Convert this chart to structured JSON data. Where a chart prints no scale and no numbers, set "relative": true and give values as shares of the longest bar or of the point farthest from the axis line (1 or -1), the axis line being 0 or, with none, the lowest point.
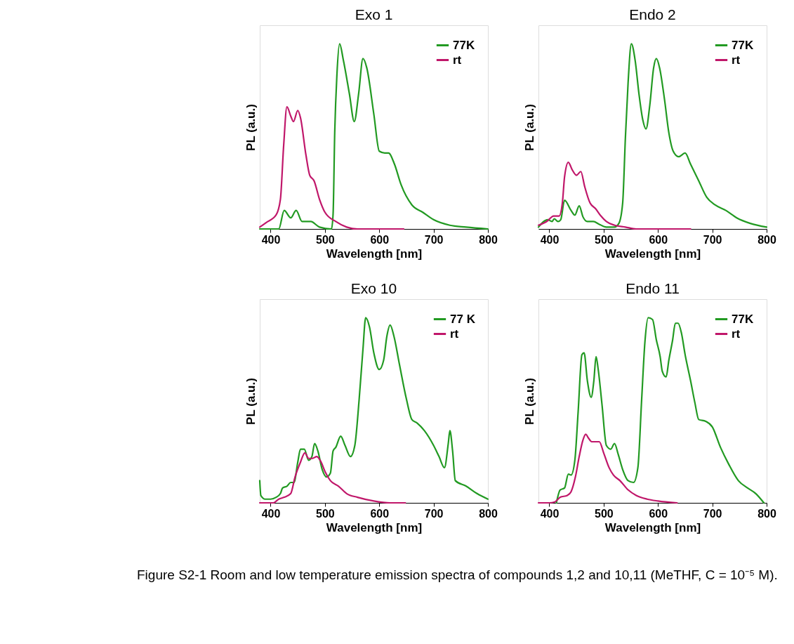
{
  "chart_data": [
    {
      "type": "line",
      "title": "Exo 1",
      "xlabel": "Wavelength  [nm]",
      "ylabel": "PL (a.u.)",
      "relative": true,
      "xlim": [
        380,
        800
      ],
      "xticks": [
        400,
        500,
        600,
        700,
        800
      ],
      "legend": "top right",
      "series": [
        {
          "name": "77K",
          "color": "#229a22",
          "x": [
            380,
            415,
            425,
            437,
            447,
            458,
            474,
            490,
            512,
            515,
            518,
            522,
            527,
            534,
            545,
            554,
            562,
            570,
            577,
            590,
            600,
            610,
            617,
            628,
            640,
            660,
            680,
            700,
            730,
            760,
            800
          ],
          "values": [
            0.0,
            0.0,
            0.1,
            0.06,
            0.1,
            0.04,
            0.04,
            0.01,
            0.0,
            0.08,
            0.52,
            0.83,
            1.0,
            0.91,
            0.73,
            0.58,
            0.73,
            0.92,
            0.87,
            0.62,
            0.42,
            0.41,
            0.41,
            0.35,
            0.24,
            0.13,
            0.09,
            0.05,
            0.02,
            0.01,
            0.0
          ]
        },
        {
          "name": "rt",
          "color": "#c0176a",
          "x": [
            380,
            392,
            410,
            418,
            424,
            430,
            437,
            442,
            450,
            455,
            465,
            472,
            480,
            490,
            500,
            520,
            540,
            560,
            645
          ],
          "values": [
            0.01,
            0.035,
            0.075,
            0.16,
            0.45,
            0.66,
            0.61,
            0.58,
            0.64,
            0.6,
            0.4,
            0.29,
            0.26,
            0.16,
            0.09,
            0.04,
            0.01,
            0.0,
            0.0
          ]
        }
      ]
    },
    {
      "type": "line",
      "title": "Endo 2",
      "xlabel": "Wavelength  [nm]",
      "ylabel": "PL (a.u.)",
      "relative": true,
      "xlim": [
        380,
        800
      ],
      "xticks": [
        400,
        500,
        600,
        700,
        800
      ],
      "legend": "top right",
      "series": [
        {
          "name": "77K",
          "color": "#229a22",
          "x": [
            380,
            397,
            405,
            409,
            416,
            421,
            428,
            440,
            447,
            455,
            462,
            470,
            481,
            492,
            505,
            520,
            528,
            535,
            540,
            545,
            551,
            558,
            565,
            572,
            578,
            585,
            592,
            597,
            603,
            612,
            620,
            628,
            638,
            650,
            660,
            675,
            690,
            705,
            725,
            745,
            770,
            800
          ],
          "values": [
            0.01,
            0.05,
            0.04,
            0.055,
            0.04,
            0.05,
            0.155,
            0.1,
            0.075,
            0.125,
            0.065,
            0.04,
            0.04,
            0.025,
            0.01,
            0.01,
            0.03,
            0.14,
            0.49,
            0.79,
            1.0,
            0.91,
            0.73,
            0.59,
            0.54,
            0.67,
            0.87,
            0.92,
            0.87,
            0.7,
            0.52,
            0.42,
            0.39,
            0.41,
            0.35,
            0.26,
            0.17,
            0.13,
            0.1,
            0.06,
            0.03,
            0.01
          ]
        },
        {
          "name": "rt",
          "color": "#c0176a",
          "x": [
            380,
            395,
            408,
            418,
            424,
            428,
            435,
            442,
            450,
            458,
            465,
            475,
            485,
            495,
            505,
            520,
            540,
            560,
            660
          ],
          "values": [
            0.02,
            0.04,
            0.07,
            0.07,
            0.14,
            0.28,
            0.36,
            0.32,
            0.29,
            0.31,
            0.23,
            0.14,
            0.11,
            0.07,
            0.04,
            0.02,
            0.01,
            0.0,
            0.0
          ]
        }
      ]
    },
    {
      "type": "line",
      "title": "Exo 10",
      "xlabel": "Wavelength  [nm]",
      "ylabel": "PL (a.u.)",
      "relative": true,
      "xlim": [
        380,
        800
      ],
      "xticks": [
        400,
        500,
        600,
        700,
        800
      ],
      "legend": "top right",
      "series": [
        {
          "name": "77 K",
          "color": "#229a22",
          "x": [
            380,
            382,
            390,
            400,
            410,
            418,
            422,
            430,
            437,
            443,
            450,
            455,
            462,
            470,
            476,
            481,
            487,
            495,
            503,
            510,
            515,
            520,
            529,
            537,
            547,
            555,
            563,
            570,
            575,
            582,
            590,
            600,
            608,
            614,
            620,
            627,
            637,
            650,
            660,
            670,
            683,
            700,
            710,
            720,
            727,
            730,
            735,
            740,
            760,
            780,
            800
          ],
          "values": [
            0.12,
            0.04,
            0.02,
            0.02,
            0.03,
            0.05,
            0.08,
            0.09,
            0.11,
            0.11,
            0.22,
            0.29,
            0.29,
            0.23,
            0.25,
            0.32,
            0.28,
            0.18,
            0.14,
            0.16,
            0.28,
            0.3,
            0.36,
            0.31,
            0.25,
            0.31,
            0.56,
            0.83,
            1.0,
            0.95,
            0.81,
            0.72,
            0.77,
            0.9,
            0.96,
            0.9,
            0.75,
            0.56,
            0.45,
            0.43,
            0.39,
            0.31,
            0.25,
            0.19,
            0.32,
            0.39,
            0.28,
            0.12,
            0.09,
            0.05,
            0.02
          ]
        },
        {
          "name": "rt",
          "color": "#c0176a",
          "x": [
            380,
            405,
            415,
            425,
            437,
            445,
            455,
            463,
            470,
            477,
            485,
            493,
            500,
            510,
            525,
            540,
            560,
            590,
            620,
            648
          ],
          "values": [
            0.0,
            0.0,
            0.02,
            0.03,
            0.05,
            0.14,
            0.22,
            0.27,
            0.24,
            0.24,
            0.25,
            0.22,
            0.17,
            0.12,
            0.09,
            0.05,
            0.03,
            0.01,
            0.0,
            0.0
          ]
        }
      ]
    },
    {
      "type": "line",
      "title": "Endo 11",
      "xlabel": "Wavelength  [nm]",
      "ylabel": "PL (a.u.)",
      "relative": true,
      "xlim": [
        380,
        800
      ],
      "xticks": [
        400,
        500,
        600,
        700,
        800
      ],
      "legend": "top right",
      "annotations": [
        "Figure S2-1 Room and low temperature emission spectra of compounds 1,2 and 10,11 (MeTHF, C = 10⁻⁵ M)."
      ],
      "series": [
        {
          "name": "77K",
          "color": "#229a22",
          "x": [
            413,
            420,
            428,
            435,
            440,
            447,
            453,
            460,
            464,
            470,
            477,
            482,
            486,
            490,
            497,
            505,
            513,
            520,
            527,
            535,
            545,
            555,
            563,
            570,
            576,
            582,
            590,
            597,
            604,
            608,
            615,
            620,
            627,
            632,
            637,
            643,
            650,
            660,
            668,
            675,
            688,
            700,
            715,
            730,
            748,
            765,
            780,
            795
          ],
          "values": [
            0.0,
            0.07,
            0.08,
            0.155,
            0.15,
            0.23,
            0.49,
            0.8,
            0.81,
            0.66,
            0.57,
            0.66,
            0.79,
            0.72,
            0.53,
            0.31,
            0.29,
            0.32,
            0.26,
            0.18,
            0.12,
            0.11,
            0.19,
            0.56,
            0.87,
            1.0,
            0.99,
            0.88,
            0.79,
            0.71,
            0.68,
            0.77,
            0.88,
            0.97,
            0.97,
            0.92,
            0.8,
            0.66,
            0.54,
            0.45,
            0.44,
            0.41,
            0.3,
            0.21,
            0.12,
            0.08,
            0.05,
            0.0
          ]
        },
        {
          "name": "rt",
          "color": "#c0176a",
          "x": [
            380,
            400,
            410,
            420,
            433,
            440,
            448,
            455,
            462,
            467,
            472,
            478,
            485,
            492,
            500,
            510,
            518,
            530,
            545,
            560,
            580,
            600,
            635
          ],
          "values": [
            0.0,
            0.0,
            0.005,
            0.03,
            0.04,
            0.06,
            0.14,
            0.25,
            0.34,
            0.37,
            0.35,
            0.33,
            0.33,
            0.33,
            0.27,
            0.19,
            0.15,
            0.12,
            0.07,
            0.04,
            0.02,
            0.01,
            0.0
          ]
        }
      ]
    }
  ]
}
